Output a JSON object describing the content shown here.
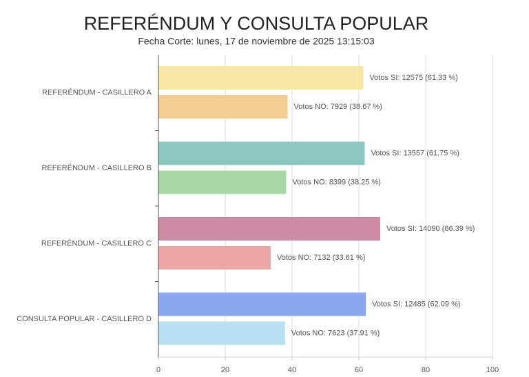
{
  "chart_data": {
    "type": "bar",
    "orientation": "horizontal",
    "title": "REFERÉNDUM Y CONSULTA POPULAR",
    "subtitle": "Fecha Corte: lunes, 17 de noviembre de 2025 13:15:03",
    "categories": [
      "REFERÉNDUM - CASILLERO A",
      "REFERÉNDUM - CASILLERO B",
      "REFERÉNDUM - CASILLERO C",
      "CONSULTA POPULAR - CASILLERO D"
    ],
    "series": [
      {
        "colors": [
          "#f7e6a4",
          "#8ac8c0",
          "#cc8aa3",
          "#8aa8ee"
        ],
        "values": [
          61.33,
          61.75,
          66.39,
          62.09
        ],
        "value_labels": [
          "Votos SI: 12575 (61.33 %)",
          "Votos SI: 13557 (61.75 %)",
          "Votos SI: 14090 (66.39 %)",
          "Votos SI: 12485 (62.09 %)"
        ]
      },
      {
        "colors": [
          "#f4cd93",
          "#a8d8a6",
          "#eca6a4",
          "#b8e0f2"
        ],
        "values": [
          38.67,
          38.25,
          33.61,
          37.91
        ],
        "value_labels": [
          "Votos NO: 7929 (38.67 %)",
          "Votos NO: 8399 (38.25 %)",
          "Votos NO: 7132 (33.61 %)",
          "Votos NO: 7623 (37.91 %)"
        ]
      }
    ],
    "xlim": [
      0,
      100
    ],
    "xticks": [
      0,
      20,
      40,
      60,
      80,
      100
    ],
    "grid": true
  }
}
